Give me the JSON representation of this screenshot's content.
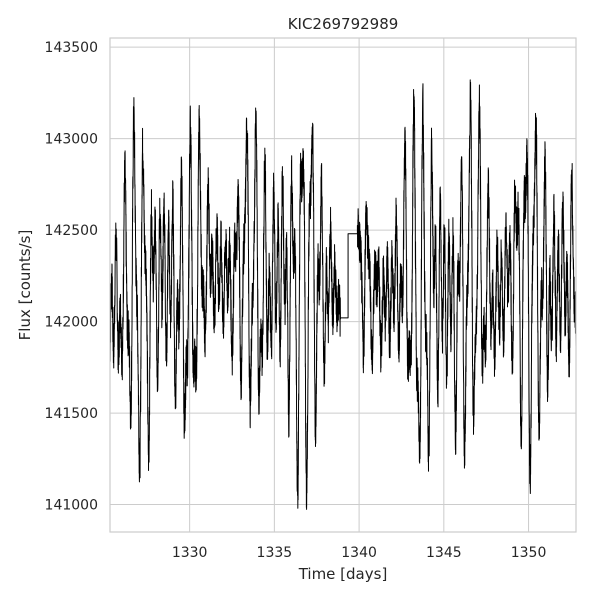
{
  "chart_data": {
    "type": "line",
    "title": "KIC269792989",
    "xlabel": "Time [days]",
    "ylabel": "Flux [counts/s]",
    "xlim": [
      1325.3,
      1352.8
    ],
    "ylim": [
      140850,
      143550
    ],
    "xticks": [
      1330,
      1335,
      1340,
      1345,
      1350
    ],
    "xtick_labels": [
      "1330",
      "1335",
      "1340",
      "1345",
      "1350"
    ],
    "yticks": [
      141000,
      141500,
      142000,
      142500,
      143000,
      143500
    ],
    "ytick_labels": [
      "141000",
      "141500",
      "142000",
      "142500",
      "143000",
      "143500"
    ],
    "grid": true,
    "legend": "none",
    "line_color": "#000000",
    "data_gap": {
      "start": 1338.9,
      "end": 1339.9,
      "level_before": 142020,
      "level_after": 142480
    },
    "series": [
      {
        "x": [
          1325.3,
          1325.9,
          1326.5,
          1327.1,
          1327.7,
          1328.3,
          1328.9,
          1329.5,
          1330.1,
          1330.7,
          1331.3,
          1331.9,
          1332.5,
          1333.1,
          1333.7,
          1334.3,
          1334.9,
          1335.5,
          1336.1,
          1336.7,
          1337.3,
          1337.9,
          1338.5,
          1338.9,
          1339.9,
          1340.3,
          1340.9,
          1341.5,
          1342.1,
          1342.7,
          1343.3,
          1343.9,
          1344.5,
          1345.1,
          1345.7,
          1346.3,
          1346.9,
          1347.5,
          1348.1,
          1348.7,
          1349.3,
          1349.9,
          1350.5,
          1351.1,
          1351.7,
          1352.3,
          1352.8
        ],
        "y": [
          142050,
          142100,
          142200,
          142150,
          142100,
          142300,
          142200,
          142050,
          142150,
          142350,
          142300,
          142250,
          142200,
          142350,
          142300,
          142150,
          142250,
          142300,
          142100,
          142200,
          142300,
          142150,
          142250,
          142020,
          142480,
          142250,
          142150,
          142100,
          142200,
          142300,
          142150,
          142050,
          142250,
          142150,
          142050,
          142200,
          142300,
          142200,
          142100,
          142250,
          142300,
          142200,
          142250,
          142150,
          142200,
          142250,
          142100
        ],
        "amplitude": [
          700,
          650,
          750,
          800,
          850,
          900,
          950,
          800,
          700,
          600,
          500,
          550,
          500,
          600,
          700,
          850,
          900,
          1000,
          950,
          900,
          850,
          800,
          500,
          0,
          0,
          400,
          350,
          500,
          650,
          700,
          800,
          950,
          1050,
          1000,
          950,
          850,
          750,
          700,
          650,
          700,
          750,
          800,
          850,
          900,
          800,
          750,
          700
        ]
      }
    ]
  }
}
